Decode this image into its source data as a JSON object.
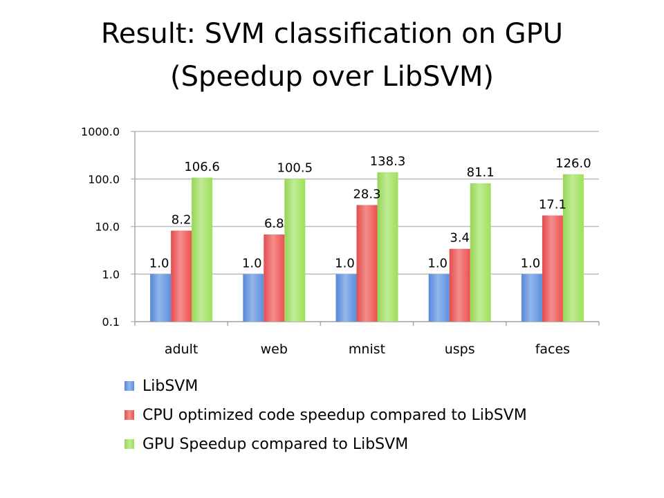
{
  "slide": {
    "title_line1": "Result: SVM classification on GPU",
    "title_line2": "(Speedup over LibSVM)"
  },
  "chart_data": {
    "type": "bar",
    "scale": "log",
    "ylim": [
      0.1,
      1000.0
    ],
    "y_ticks": [
      {
        "value": 1000.0,
        "label": "1000.0"
      },
      {
        "value": 100.0,
        "label": "100.0"
      },
      {
        "value": 10.0,
        "label": "10.0"
      },
      {
        "value": 1.0,
        "label": "1.0"
      },
      {
        "value": 0.1,
        "label": "0.1"
      }
    ],
    "grid": true,
    "legend_position": "bottom",
    "categories": [
      "adult",
      "web",
      "mnist",
      "usps",
      "faces"
    ],
    "series": [
      {
        "name": "LibSVM",
        "color": "#5b8fe0",
        "values": [
          1.0,
          1.0,
          1.0,
          1.0,
          1.0
        ],
        "labels": [
          "1.0",
          "1.0",
          "1.0",
          "1.0",
          "1.0"
        ]
      },
      {
        "name": "CPU optimized code speedup compared to LibSVM",
        "color": "#ee5050",
        "values": [
          8.2,
          6.8,
          28.3,
          3.4,
          17.1
        ],
        "labels": [
          "8.2",
          "6.8",
          "28.3",
          "3.4",
          "17.1"
        ]
      },
      {
        "name": "GPU Speedup compared to LibSVM",
        "color": "#9ee05a",
        "values": [
          106.6,
          100.5,
          138.3,
          81.1,
          126.0
        ],
        "labels": [
          "106.6",
          "100.5",
          "138.3",
          "81.1",
          "126.0"
        ]
      }
    ]
  }
}
